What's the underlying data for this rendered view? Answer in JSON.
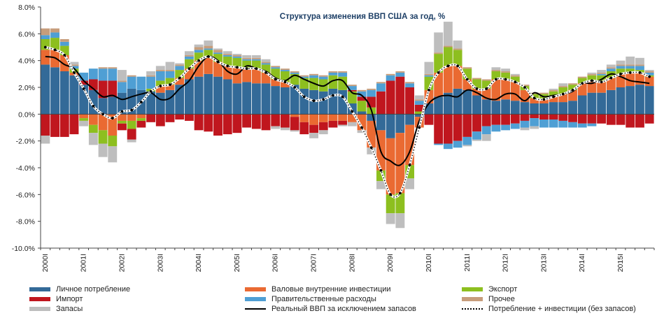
{
  "chart_data": {
    "type": "bar",
    "title": "Структура изменения ВВП США за год, %",
    "ylim": [
      -10,
      8
    ],
    "yticks": [
      "8.0%",
      "6.0%",
      "4.0%",
      "2.0%",
      "0.0%",
      "-2.0%",
      "-4.0%",
      "-6.0%",
      "-8.0%",
      "-10.0%"
    ],
    "ytick_values": [
      8,
      6,
      4,
      2,
      0,
      -2,
      -4,
      -6,
      -8,
      -10
    ],
    "x_labels": [
      "2000I",
      "2001I",
      "2002I",
      "2003I",
      "2004I",
      "2005I",
      "2006I",
      "2007I",
      "2008I",
      "2009I",
      "2010I",
      "2011I",
      "2012I",
      "2013I",
      "2014I",
      "2015I"
    ],
    "quarters_per_year": 4,
    "series": [
      {
        "name": "Личное потребление",
        "color": "#336a98",
        "values": [
          3.7,
          3.5,
          3.2,
          2.9,
          2.2,
          1.8,
          1.2,
          1.3,
          1.6,
          1.9,
          1.8,
          1.7,
          1.6,
          1.8,
          2.2,
          2.6,
          2.8,
          3.0,
          2.8,
          2.6,
          2.3,
          2.4,
          2.3,
          2.3,
          2.1,
          2.0,
          2.2,
          1.9,
          1.8,
          1.7,
          1.9,
          1.8,
          0.8,
          0.2,
          -0.5,
          -1.2,
          -1.8,
          -1.4,
          -0.8,
          -0.2,
          0.8,
          1.3,
          1.6,
          1.9,
          1.8,
          1.4,
          1.1,
          1.0,
          1.1,
          1.0,
          0.9,
          0.8,
          0.8,
          0.9,
          0.9,
          1.0,
          1.4,
          1.6,
          1.6,
          1.8,
          2.0,
          2.1,
          2.2,
          2.1
        ]
      },
      {
        "name": "Валовые внутренние инвестиции",
        "color": "#ea6a32",
        "values": [
          1.1,
          1.3,
          1.2,
          0.2,
          -0.3,
          -0.8,
          -1.2,
          -1.6,
          -0.5,
          -0.5,
          -0.3,
          0.0,
          0.5,
          0.4,
          0.5,
          0.8,
          1.2,
          1.3,
          1.1,
          1.0,
          1.2,
          1.0,
          1.1,
          0.8,
          0.5,
          0.4,
          -0.2,
          -0.6,
          -0.8,
          -0.6,
          -0.5,
          -0.5,
          -0.6,
          -1.2,
          -2.0,
          -3.0,
          -4.2,
          -4.5,
          -3.0,
          -0.8,
          1.0,
          1.8,
          2.0,
          1.7,
          0.8,
          0.5,
          0.8,
          1.6,
          1.5,
          1.4,
          0.9,
          0.4,
          0.3,
          0.4,
          0.6,
          0.8,
          0.9,
          0.9,
          0.8,
          0.9,
          1.0,
          1.0,
          0.9,
          0.7
        ]
      },
      {
        "name": "Экспорт",
        "color": "#8dbf1f",
        "values": [
          0.8,
          0.9,
          0.7,
          0.3,
          -0.2,
          -0.6,
          -1.0,
          -0.8,
          -0.2,
          -0.6,
          -0.2,
          0.2,
          0.4,
          0.5,
          0.6,
          0.7,
          0.6,
          0.5,
          0.6,
          0.7,
          0.7,
          0.6,
          0.6,
          0.6,
          0.8,
          0.8,
          0.8,
          0.8,
          0.9,
          0.9,
          1.0,
          1.0,
          0.9,
          0.8,
          0.5,
          -0.8,
          -1.4,
          -1.5,
          -1.0,
          0.2,
          1.0,
          1.4,
          1.4,
          1.2,
          0.8,
          0.7,
          0.6,
          0.6,
          0.5,
          0.4,
          0.3,
          0.3,
          0.4,
          0.4,
          0.5,
          0.4,
          0.4,
          0.4,
          0.5,
          0.5,
          0.4,
          0.3,
          0.2,
          0.1
        ]
      },
      {
        "name": "Импорт",
        "color": "#c0161e",
        "values": [
          -1.6,
          -1.7,
          -1.7,
          -1.5,
          0.3,
          0.8,
          1.3,
          1.2,
          -0.5,
          -0.8,
          -0.5,
          -0.6,
          -0.9,
          -0.6,
          -0.4,
          -0.5,
          -1.2,
          -1.3,
          -1.6,
          -1.5,
          -1.4,
          -1.0,
          -1.1,
          -1.2,
          -0.9,
          -1.0,
          -1.0,
          -0.9,
          -0.6,
          -0.6,
          -0.5,
          -0.3,
          0.1,
          0.3,
          0.8,
          1.7,
          2.5,
          2.8,
          2.0,
          0.5,
          -0.8,
          -2.2,
          -2.2,
          -2.0,
          -1.7,
          -1.3,
          -0.9,
          -0.8,
          -0.8,
          -0.7,
          -0.5,
          -0.3,
          -0.4,
          -0.4,
          -0.5,
          -0.6,
          -0.7,
          -0.7,
          -0.7,
          -0.8,
          -0.8,
          -1.0,
          -1.0,
          -0.7
        ]
      },
      {
        "name": "Правительственные расходы",
        "color": "#4f9fd4",
        "values": [
          0.3,
          0.4,
          0.3,
          0.2,
          0.6,
          0.8,
          0.9,
          0.9,
          0.8,
          0.9,
          1.0,
          0.9,
          0.7,
          0.5,
          0.3,
          0.2,
          0.2,
          0.1,
          0.1,
          0.1,
          0.1,
          0.1,
          0.1,
          0.1,
          0.1,
          0.1,
          0.1,
          0.1,
          0.2,
          0.2,
          0.2,
          0.3,
          0.3,
          0.4,
          0.5,
          0.6,
          0.4,
          0.3,
          0.3,
          0.3,
          0.1,
          -0.1,
          -0.4,
          -0.5,
          -0.6,
          -0.6,
          -0.6,
          -0.5,
          -0.4,
          -0.4,
          -0.5,
          -0.6,
          -0.6,
          -0.6,
          -0.5,
          -0.4,
          -0.3,
          -0.2,
          0.1,
          0.2,
          0.2,
          0.2,
          0.3,
          0.2
        ]
      },
      {
        "name": "Прочее",
        "color": "#c79d7b",
        "values": [
          0.5,
          0.3,
          0.2,
          0.1,
          0.0,
          0.0,
          0.1,
          0.1,
          0.1,
          0.1,
          0.0,
          0.1,
          0.1,
          0.1,
          0.1,
          0.1,
          0.2,
          0.2,
          0.2,
          0.1,
          0.1,
          0.1,
          0.1,
          0.1,
          0.1,
          0.1,
          0.1,
          0.1,
          0.1,
          0.1,
          0.1,
          0.1,
          0.1,
          0.1,
          0.1,
          0.1,
          0.1,
          0.1,
          0.1,
          0.1,
          0.1,
          0.1,
          0.1,
          0.1,
          0.1,
          0.1,
          0.1,
          0.1,
          0.1,
          0.1,
          0.1,
          0.1,
          0.1,
          0.1,
          0.1,
          0.1,
          0.1,
          0.1,
          0.1,
          0.1,
          0.1,
          0.1,
          0.1,
          0.1
        ]
      },
      {
        "name": "Запасы",
        "color": "#bebebe",
        "values": [
          -0.6,
          0.0,
          0.0,
          0.2,
          -0.4,
          -0.9,
          -1.0,
          -1.2,
          0.8,
          -0.2,
          0.0,
          0.3,
          0.3,
          0.6,
          0.1,
          0.3,
          0.2,
          0.4,
          0.1,
          0.2,
          0.1,
          0.2,
          0.2,
          0.2,
          -0.2,
          -0.2,
          -0.1,
          0.0,
          -0.4,
          -0.3,
          0.0,
          -0.1,
          -0.3,
          -0.2,
          -0.5,
          -0.6,
          -0.8,
          -1.1,
          -0.8,
          0.3,
          0.9,
          1.5,
          1.8,
          0.6,
          -0.1,
          -0.1,
          -0.5,
          0.2,
          0.2,
          0.1,
          -0.2,
          -0.2,
          0.0,
          0.1,
          0.2,
          0.0,
          0.0,
          0.1,
          0.2,
          0.2,
          0.3,
          0.6,
          0.5,
          0.1
        ]
      },
      {
        "name": "Реальный ВВП за исключением запасов",
        "type": "line",
        "color": "#000000",
        "values": [
          4.3,
          4.2,
          3.7,
          3.4,
          2.5,
          1.9,
          1.3,
          1.4,
          1.1,
          1.3,
          1.5,
          1.6,
          1.1,
          1.2,
          1.9,
          2.5,
          3.6,
          4.3,
          4.0,
          3.2,
          3.0,
          3.6,
          3.4,
          3.2,
          2.7,
          2.5,
          2.9,
          2.6,
          2.3,
          2.1,
          2.5,
          2.5,
          1.6,
          1.4,
          0.3,
          -2.8,
          -3.5,
          -3.8,
          -2.8,
          -0.5,
          0.8,
          1.3,
          1.4,
          1.3,
          1.8,
          1.6,
          1.2,
          1.1,
          1.5,
          1.5,
          1.0,
          1.6,
          1.3,
          1.4,
          1.5,
          1.7,
          2.3,
          2.3,
          2.6,
          3.0,
          2.8,
          2.5,
          2.4,
          2.3
        ]
      },
      {
        "name": "Потребление + инвестиции (без запасов)",
        "type": "line",
        "style": "dotted",
        "color": "#000000",
        "values": [
          5.0,
          4.8,
          4.4,
          3.1,
          1.9,
          0.6,
          0.0,
          -0.3,
          0.2,
          0.3,
          0.9,
          1.7,
          2.1,
          2.2,
          2.7,
          3.4,
          4.0,
          4.3,
          3.9,
          3.6,
          3.5,
          3.4,
          3.4,
          3.1,
          2.6,
          2.4,
          2.0,
          1.3,
          1.0,
          1.1,
          1.4,
          1.3,
          0.2,
          -1.0,
          -2.5,
          -4.2,
          -6.0,
          -5.9,
          -3.8,
          -1.0,
          1.8,
          3.1,
          3.6,
          3.6,
          2.6,
          1.9,
          1.9,
          2.6,
          2.6,
          2.4,
          2.0,
          1.2,
          1.1,
          1.3,
          1.5,
          1.8,
          2.3,
          2.5,
          2.4,
          2.7,
          3.0,
          3.1,
          3.1,
          2.8
        ]
      }
    ]
  },
  "legend": [
    {
      "label": "Личное потребление",
      "kind": "bar",
      "color": "#336a98"
    },
    {
      "label": "Валовые внутренние инвестиции",
      "kind": "bar",
      "color": "#ea6a32"
    },
    {
      "label": "Экспорт",
      "kind": "bar",
      "color": "#8dbf1f"
    },
    {
      "label": "Импорт",
      "kind": "bar",
      "color": "#c0161e"
    },
    {
      "label": "Правительственные расходы",
      "kind": "bar",
      "color": "#4f9fd4"
    },
    {
      "label": "Прочее",
      "kind": "bar",
      "color": "#c79d7b"
    },
    {
      "label": "Запасы",
      "kind": "bar",
      "color": "#bebebe"
    },
    {
      "label": "Реальный ВВП за исключением запасов",
      "kind": "line"
    },
    {
      "label": "Потребление + инвестиции (без запасов)",
      "kind": "dotted"
    }
  ]
}
